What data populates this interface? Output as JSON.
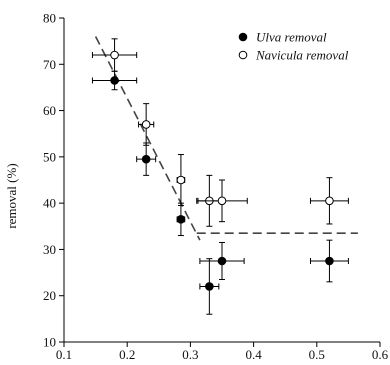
{
  "chart_data": {
    "type": "scatter",
    "title": "",
    "xlabel": "",
    "ylabel": "removal (%)",
    "xlim": [
      0.1,
      0.6
    ],
    "ylim": [
      10,
      80
    ],
    "x_ticks": [
      0.1,
      0.2,
      0.3,
      0.4,
      0.5,
      0.6
    ],
    "y_ticks": [
      10,
      20,
      30,
      40,
      50,
      60,
      70,
      80
    ],
    "x_tick_labels": [
      "0.1",
      "0.2",
      "0.3",
      "0.4",
      "0.5",
      "0.6"
    ],
    "y_tick_labels": [
      "10",
      "20",
      "30",
      "40",
      "50",
      "60",
      "70",
      "80"
    ],
    "grid": false,
    "legend_position": "top-right",
    "series": [
      {
        "name": "Ulva removal",
        "marker": "filled-circle",
        "color": "#000000",
        "points": [
          {
            "x": 0.18,
            "y": 66.5,
            "xerr": 0.035,
            "yerr": 2.0
          },
          {
            "x": 0.23,
            "y": 49.5,
            "xerr": 0.015,
            "yerr": 3.5
          },
          {
            "x": 0.285,
            "y": 36.5,
            "xerr": 0.006,
            "yerr": 3.5
          },
          {
            "x": 0.33,
            "y": 22.0,
            "xerr": 0.015,
            "yerr": 6.0
          },
          {
            "x": 0.35,
            "y": 27.5,
            "xerr": 0.035,
            "yerr": 4.0
          },
          {
            "x": 0.52,
            "y": 27.5,
            "xerr": 0.03,
            "yerr": 4.5
          }
        ]
      },
      {
        "name": "Navicula removal",
        "marker": "open-circle",
        "color": "#000000",
        "points": [
          {
            "x": 0.18,
            "y": 72.0,
            "xerr": 0.035,
            "yerr": 3.5
          },
          {
            "x": 0.23,
            "y": 57.0,
            "xerr": 0.012,
            "yerr": 4.5
          },
          {
            "x": 0.285,
            "y": 45.0,
            "xerr": 0.006,
            "yerr": 5.5
          },
          {
            "x": 0.33,
            "y": 40.5,
            "xerr": 0.018,
            "yerr": 5.5
          },
          {
            "x": 0.35,
            "y": 40.5,
            "xerr": 0.04,
            "yerr": 4.5
          },
          {
            "x": 0.52,
            "y": 40.5,
            "xerr": 0.03,
            "yerr": 5.0
          }
        ]
      }
    ],
    "fit_lines": [
      {
        "style": "dashed",
        "color": "#444444",
        "x": [
          0.15,
          0.315
        ],
        "y": [
          76,
          32
        ]
      },
      {
        "style": "dashed",
        "color": "#444444",
        "x": [
          0.31,
          0.565
        ],
        "y": [
          33.5,
          33.5
        ]
      }
    ]
  }
}
